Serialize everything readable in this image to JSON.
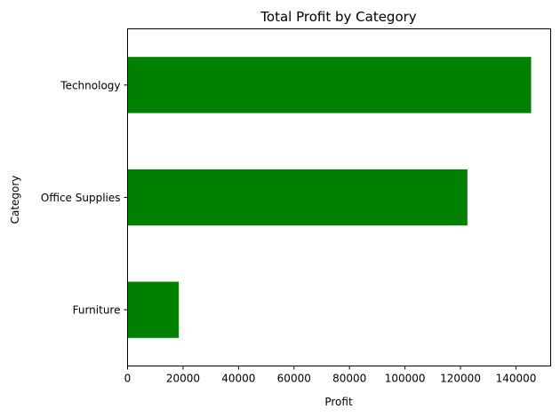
{
  "chart_data": {
    "type": "bar",
    "orientation": "horizontal",
    "title": "Total Profit by Category",
    "xlabel": "Profit",
    "ylabel": "Category",
    "categories": [
      "Furniture",
      "Office Supplies",
      "Technology"
    ],
    "values": [
      18451,
      122491,
      145455
    ],
    "xlim": [
      0,
      152500
    ],
    "xticks": [
      0,
      20000,
      40000,
      60000,
      80000,
      100000,
      120000,
      140000
    ],
    "grid": false,
    "legend": "none",
    "bar_color": "#008000"
  }
}
